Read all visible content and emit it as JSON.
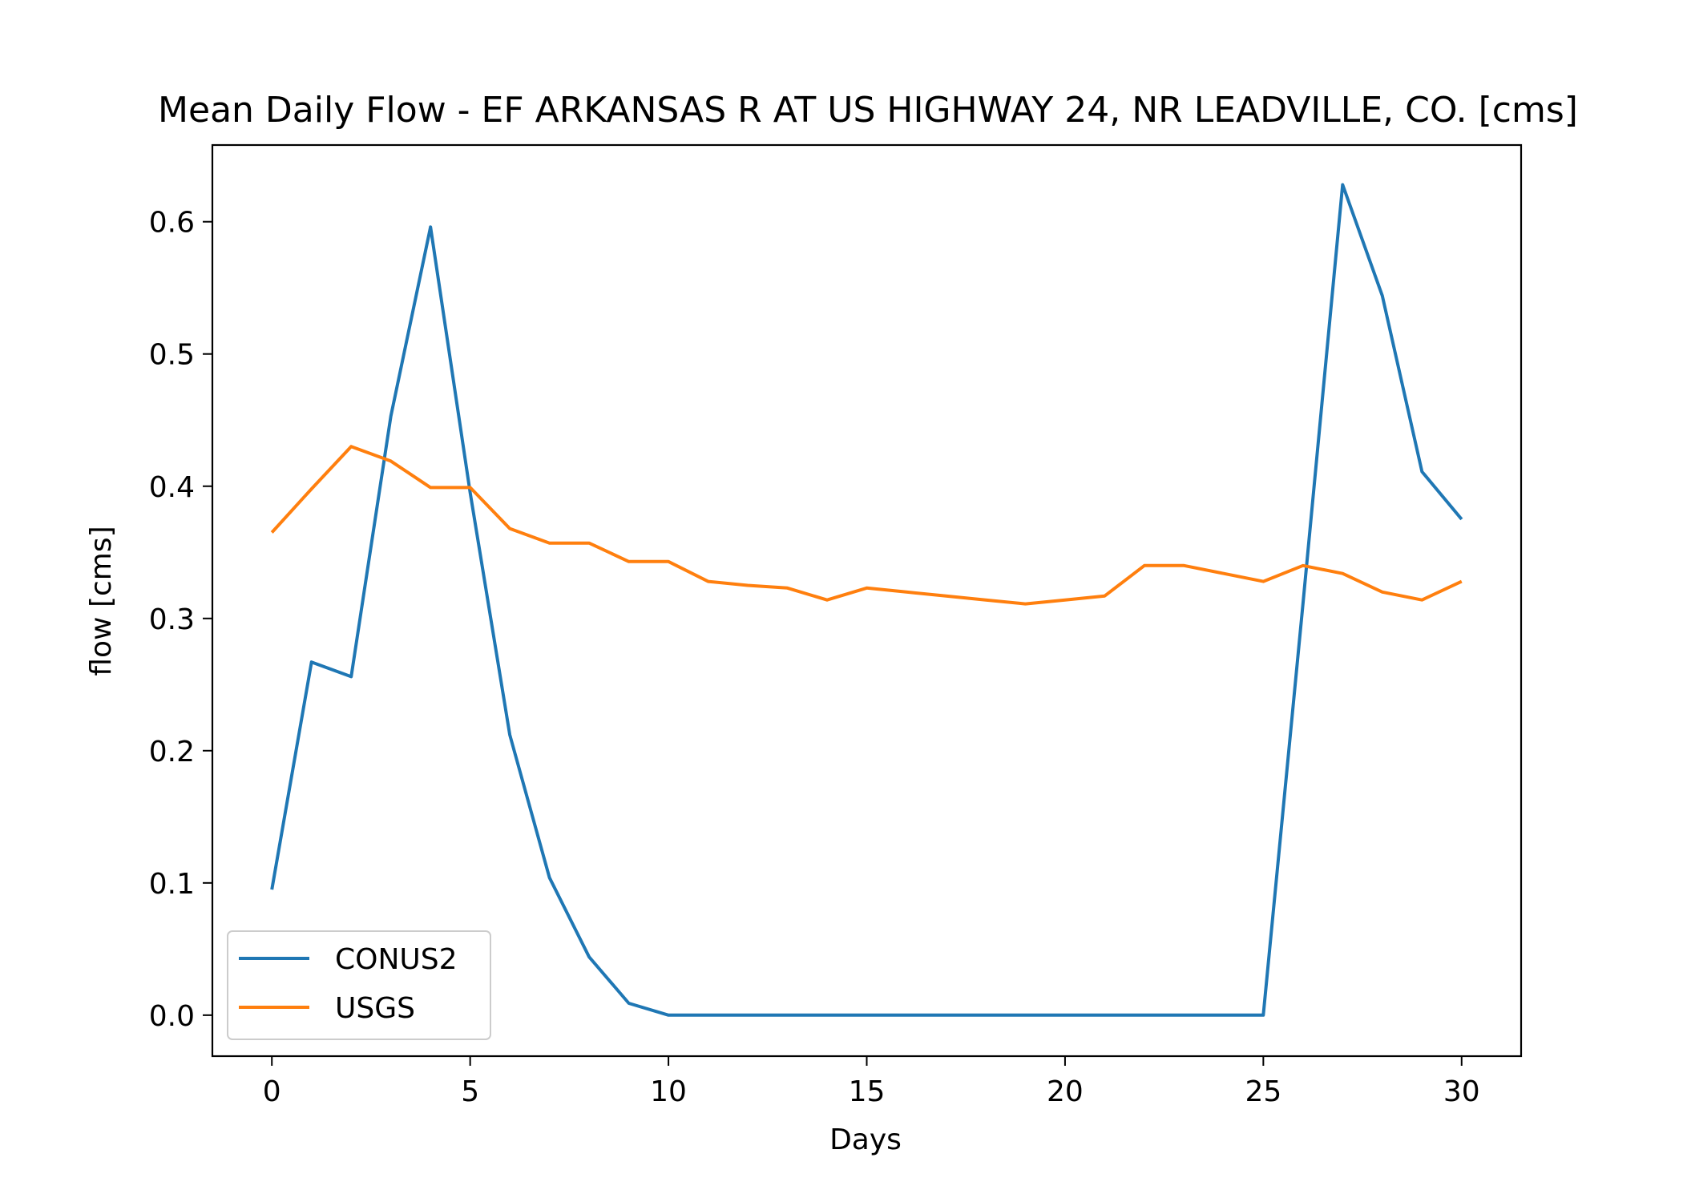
{
  "chart_data": {
    "type": "line",
    "title": "Mean Daily Flow - EF ARKANSAS R AT US HIGHWAY 24, NR LEADVILLE, CO. [cms]",
    "xlabel": "Days",
    "ylabel": "flow [cms]",
    "xlim": [
      -1.5,
      31.5
    ],
    "ylim": [
      -0.031,
      0.658
    ],
    "x_ticks": [
      0,
      5,
      10,
      15,
      20,
      25,
      30
    ],
    "y_ticks": [
      0.0,
      0.1,
      0.2,
      0.3,
      0.4,
      0.5,
      0.6
    ],
    "x_tick_labels": [
      "0",
      "5",
      "10",
      "15",
      "20",
      "25",
      "30"
    ],
    "y_tick_labels": [
      "0.0",
      "0.1",
      "0.2",
      "0.3",
      "0.4",
      "0.5",
      "0.6"
    ],
    "grid": false,
    "legend_position": "lower-left",
    "x": [
      0,
      1,
      2,
      3,
      4,
      5,
      6,
      7,
      8,
      9,
      10,
      11,
      12,
      13,
      14,
      15,
      16,
      17,
      18,
      19,
      20,
      21,
      22,
      23,
      24,
      25,
      26,
      27,
      28,
      29,
      30
    ],
    "series": [
      {
        "name": "CONUS2",
        "color": "#1f77b4",
        "values": [
          0.095,
          0.267,
          0.256,
          0.453,
          0.596,
          0.395,
          0.212,
          0.104,
          0.044,
          0.009,
          0.0,
          0.0,
          0.0,
          0.0,
          0.0,
          0.0,
          0.0,
          0.0,
          0.0,
          0.0,
          0.0,
          0.0,
          0.0,
          0.0,
          0.0,
          0.0,
          0.311,
          0.628,
          0.544,
          0.411,
          0.375
        ]
      },
      {
        "name": "USGS",
        "color": "#ff7f0e",
        "values": [
          0.365,
          0.398,
          0.43,
          0.419,
          0.399,
          0.399,
          0.368,
          0.357,
          0.357,
          0.343,
          0.343,
          0.328,
          0.325,
          0.323,
          0.314,
          0.323,
          0.32,
          0.317,
          0.314,
          0.311,
          0.314,
          0.317,
          0.34,
          0.34,
          0.334,
          0.328,
          0.34,
          0.334,
          0.32,
          0.314,
          0.328
        ]
      }
    ]
  }
}
